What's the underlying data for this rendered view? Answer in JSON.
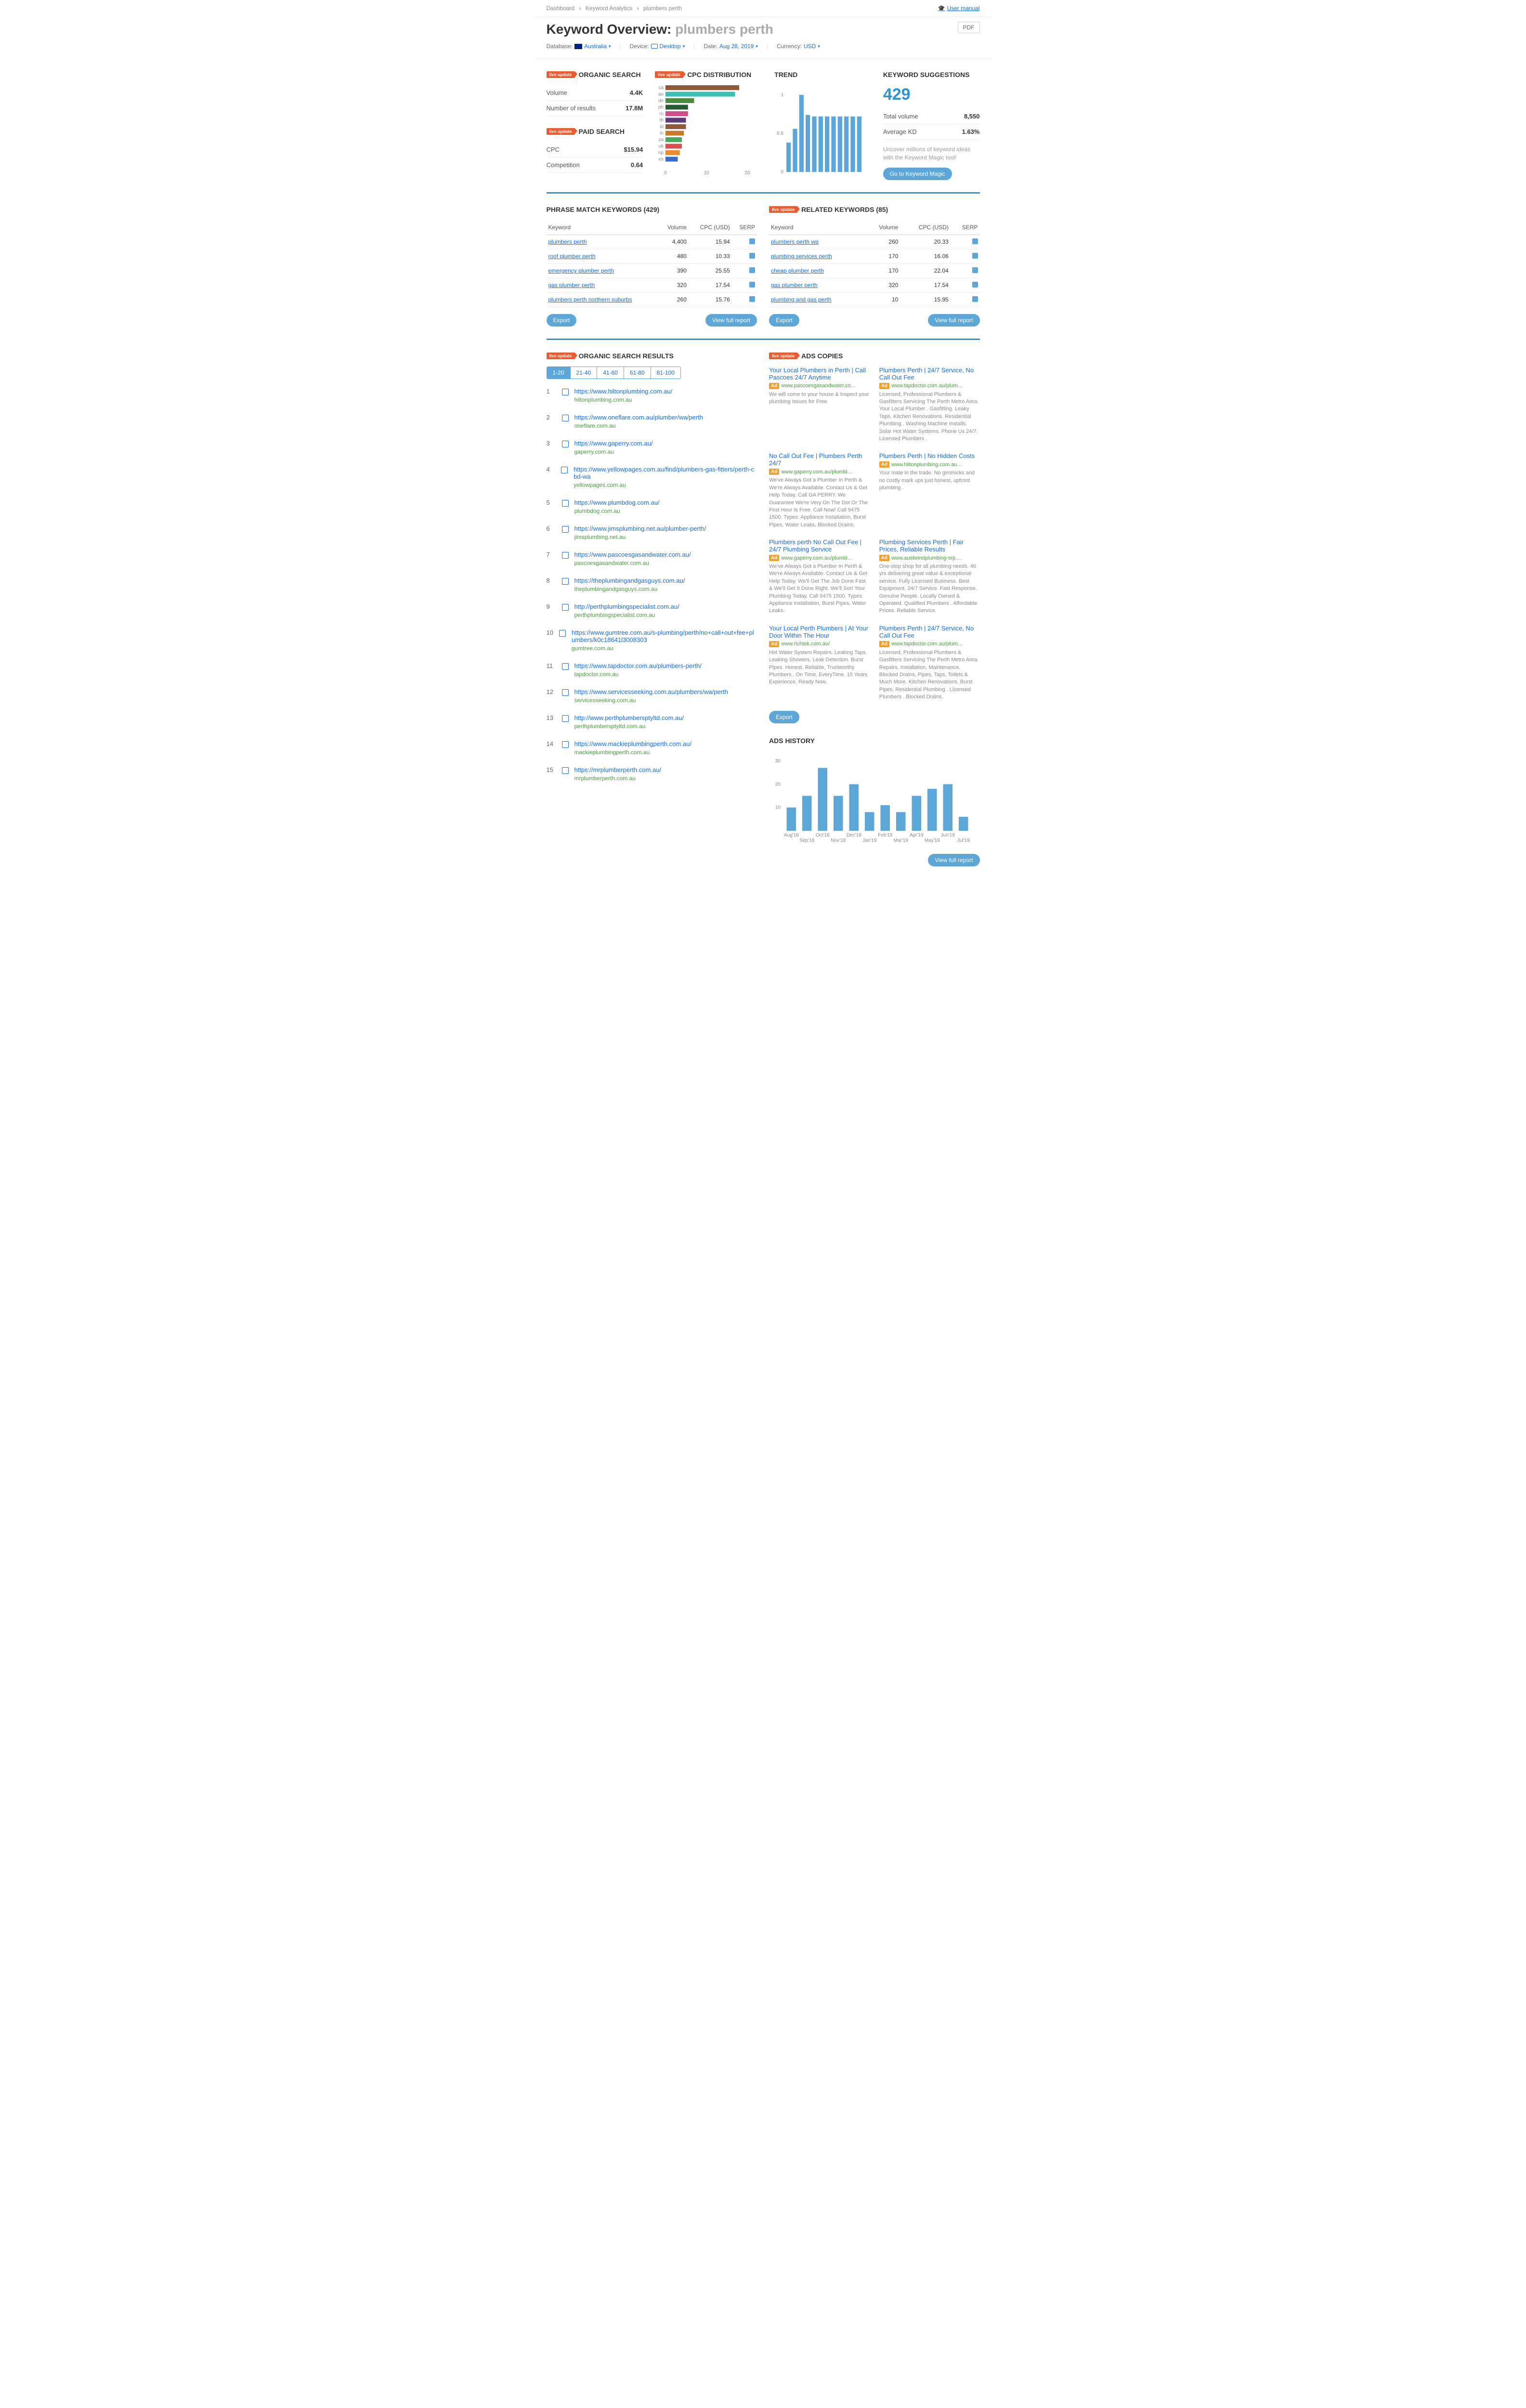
{
  "breadcrumb": {
    "items": [
      "Dashboard",
      "Keyword Analytics",
      "plumbers perth"
    ],
    "manual": "User manual"
  },
  "header": {
    "title_prefix": "Keyword Overview: ",
    "keyword": "plumbers perth",
    "pdf": "PDF"
  },
  "filters": {
    "database_label": "Database:",
    "database_val": "Australia",
    "device_label": "Device:",
    "device_val": "Desktop",
    "date_label": "Date:",
    "date_val": "Aug 28, 2019",
    "currency_label": "Currency:",
    "currency_val": "USD"
  },
  "organic_search": {
    "title": "ORGANIC SEARCH",
    "rows": [
      {
        "k": "Volume",
        "v": "4.4K"
      },
      {
        "k": "Number of results",
        "v": "17.8M"
      }
    ]
  },
  "paid_search": {
    "title": "PAID SEARCH",
    "rows": [
      {
        "k": "CPC",
        "v": "$15.94"
      },
      {
        "k": "Competition",
        "v": "0.64"
      }
    ]
  },
  "cpc_dist": {
    "title": "CPC DISTRIBUTION",
    "labels": [
      "ca",
      "au",
      "de",
      "ph",
      "ru",
      "th",
      "id",
      "in",
      "za",
      "uk",
      "np",
      "es"
    ],
    "values": [
      18,
      17,
      7,
      5.5,
      5.5,
      5,
      5,
      4.5,
      4,
      4,
      3.5,
      3
    ],
    "colors": [
      "#8f5a3a",
      "#3bbfb2",
      "#4a8c3f",
      "#2a5a33",
      "#d14a8a",
      "#5c3a7a",
      "#8f5a3a",
      "#c77a2a",
      "#4aa85c",
      "#d94f4f",
      "#f08a2a",
      "#3a6ac7"
    ],
    "xmax": 20,
    "xticks": [
      0,
      10,
      20
    ]
  },
  "trend": {
    "title": "TREND",
    "values": [
      0.38,
      0.56,
      1.0,
      0.74,
      0.72,
      0.72,
      0.72,
      0.72,
      0.72,
      0.72,
      0.72,
      0.72
    ],
    "color": "#5ca7d8",
    "yticks": [
      "0",
      "0.5",
      "1"
    ]
  },
  "suggestions": {
    "title": "KEYWORD SUGGESTIONS",
    "count": "429",
    "rows": [
      {
        "k": "Total volume",
        "v": "8,550"
      },
      {
        "k": "Average KD",
        "v": "1.63%"
      }
    ],
    "hint": "Uncover millions of keyword ideas with the Keyword Magic tool!",
    "btn": "Go to Keyword Magic"
  },
  "phrase_match": {
    "title": "PHRASE MATCH KEYWORDS (429)",
    "headers": [
      "Keyword",
      "Volume",
      "CPC (USD)",
      "SERP"
    ],
    "rows": [
      {
        "kw": "plumbers perth",
        "vol": "4,400",
        "cpc": "15.94"
      },
      {
        "kw": "roof plumber perth",
        "vol": "480",
        "cpc": "10.33"
      },
      {
        "kw": "emergency plumber perth",
        "vol": "390",
        "cpc": "25.55"
      },
      {
        "kw": "gas plumber perth",
        "vol": "320",
        "cpc": "17.54"
      },
      {
        "kw": "plumbers perth northern suburbs",
        "vol": "260",
        "cpc": "15.76"
      }
    ],
    "export": "Export",
    "report": "View full report"
  },
  "related": {
    "title": "RELATED KEYWORDS (85)",
    "headers": [
      "Keyword",
      "Volume",
      "CPC (USD)",
      "SERP"
    ],
    "rows": [
      {
        "kw": "plumbers perth wa",
        "vol": "260",
        "cpc": "20.33"
      },
      {
        "kw": "plumbing services perth",
        "vol": "170",
        "cpc": "16.06"
      },
      {
        "kw": "cheap plumber perth",
        "vol": "170",
        "cpc": "22.04"
      },
      {
        "kw": "gas plumber perth",
        "vol": "320",
        "cpc": "17.54"
      },
      {
        "kw": "plumbing and gas perth",
        "vol": "10",
        "cpc": "15.95"
      }
    ],
    "export": "Export",
    "report": "View full report"
  },
  "org_results": {
    "title": "ORGANIC SEARCH RESULTS",
    "pages": [
      "1-20",
      "21-40",
      "41-60",
      "61-80",
      "81-100"
    ],
    "list": [
      {
        "n": "1",
        "url": "https://www.hiltonplumbing.com.au/",
        "dom": "hiltonplumbing.com.au"
      },
      {
        "n": "2",
        "url": "https://www.oneflare.com.au/plumber/wa/perth",
        "dom": "oneflare.com.au"
      },
      {
        "n": "3",
        "url": "https://www.gaperry.com.au/",
        "dom": "gaperry.com.au"
      },
      {
        "n": "4",
        "url": "https://www.yellowpages.com.au/find/plumbers-gas-fitters/perth-cbd-wa",
        "dom": "yellowpages.com.au"
      },
      {
        "n": "5",
        "url": "https://www.plumbdog.com.au/",
        "dom": "plumbdog.com.au"
      },
      {
        "n": "6",
        "url": "https://www.jimsplumbing.net.au/plumber-perth/",
        "dom": "jimsplumbing.net.au"
      },
      {
        "n": "7",
        "url": "https://www.pascoesgasandwater.com.au/",
        "dom": "pascoesgasandwater.com.au"
      },
      {
        "n": "8",
        "url": "https://theplumbingandgasguys.com.au/",
        "dom": "theplumbingandgasguys.com.au"
      },
      {
        "n": "9",
        "url": "http://perthplumbingspecialist.com.au/",
        "dom": "perthplumbingspecialist.com.au"
      },
      {
        "n": "10",
        "url": "https://www.gumtree.com.au/s-plumbing/perth/no+call+out+fee+plumbers/k0c18641l3008303",
        "dom": "gumtree.com.au"
      },
      {
        "n": "11",
        "url": "https://www.tapdoctor.com.au/plumbers-perth/",
        "dom": "tapdoctor.com.au"
      },
      {
        "n": "12",
        "url": "https://www.servicesseeking.com.au/plumbers/wa/perth",
        "dom": "servicesseeking.com.au"
      },
      {
        "n": "13",
        "url": "http://www.perthplumbersptyltd.com.au/",
        "dom": "perthplumbersptyltd.com.au"
      },
      {
        "n": "14",
        "url": "https://www.mackieplumbingperth.com.au/",
        "dom": "mackieplumbingperth.com.au"
      },
      {
        "n": "15",
        "url": "https://mrplumberperth.com.au/",
        "dom": "mrplumberperth.com.au"
      }
    ]
  },
  "ads": {
    "title": "ADS COPIES",
    "ad_label": "Ad",
    "items": [
      {
        "title": "Your Local Plumbers in Perth | Call Pascoes 24/7 Anytime",
        "url": "www.pascoesgasandwater.co…",
        "desc": "We will come to your house & Inspect your plumbing issues for Free"
      },
      {
        "title": "Plumbers Perth | 24/7 Service, No Call Out Fee",
        "url": "www.tapdoctor.com.au/plum…",
        "desc": "Licensed, Professional Plumbers & Gasfitters Servicing The Perth Metro Area. Your Local Plumber . Gasfitting. Leaky Taps. Kitchen Renovations. Residential Plumbing . Washing Machine Installs. Solar Hot Water Systems. Phone Us 24/7. Licensed Plumbers ."
      },
      {
        "title": "No Call Out Fee | Plumbers Perth 24/7",
        "url": "www.gaperry.com.au/plumbi…",
        "desc": "We've Always Got a Plumber In Perth & We're Always Available. Contact Us & Get Help Today. Call GA PERRY. We Guarantee We're Very On The Dot Or The First Hour Is Free. Call Now! Call 9475 1500. Types: Appliance Installation, Burst Pipes, Water Leaks, Blocked Drains."
      },
      {
        "title": "Plumbers Perth | No Hidden Costs",
        "url": "www.hiltonplumbing.com.au…",
        "desc": "Your mate in the trade. No gimmicks and no costly mark ups just honest, upfront plumbing ."
      },
      {
        "title": "Plumbers perth No Call Out Fee | 24/7 Plumbing Service",
        "url": "www.gaperry.com.au/plumbi…",
        "desc": "We've Always Got a Plumber In Perth & We're Always Available. Contact Us & Get Help Today. We'll Get The Job Done Fast & We'll Get It Done Right. We'll Sort Your Plumbing Today. Call 9475 1500. Types: Appliance Installation, Burst Pipes, Water Leaks."
      },
      {
        "title": "Plumbing Services Perth | Fair Prices, Reliable Results",
        "url": "www.austwestplumbing-srp.…",
        "desc": "One-stop shop for all plumbing needs. 40 yrs delivering great value & exceptional service. Fully Licensed Business. Best Equipment. 24/7 Service. Fast Response. Genuine People. Locally Owned & Operated. Qualified Plumbers . Affordable Prices. Reliable Service."
      },
      {
        "title": "Your Local Perth Plumbers | At Your Door Within The Hour",
        "url": "www.richtek.com.au/",
        "desc": "Hot Water System Repairs. Leaking Taps. Leaking Showers. Leak Detection. Burst Pipes. Honest, Reliable, Trustworthy Plumbers . On Time, EveryTime. 15 Years Experience. Ready Now."
      },
      {
        "title": "Plumbers Perth | 24/7 Service, No Call Out Fee",
        "url": "www.tapdoctor.com.au/plum…",
        "desc": "Licensed, Professional Plumbers & Gasfitters Servicing The Perth Metro Area. Repairs, Installation, Maintenance, Blocked Drains, Pipes, Taps, Toilets & Much More. Kitchen Renovations. Burst Pipes. Residential Plumbing . Licensed Plumbers . Blocked Drains."
      }
    ],
    "export": "Export"
  },
  "ads_history": {
    "title": "ADS HISTORY",
    "labels": [
      "Aug'18",
      "Sep'18",
      "Oct'18",
      "Nov'18",
      "Dec'18",
      "Jan'19",
      "Feb'19",
      "Mar'19",
      "Apr'19",
      "May'19",
      "Jun'19",
      "Jul'19"
    ],
    "values": [
      10,
      15,
      27,
      15,
      20,
      8,
      11,
      8,
      15,
      18,
      20,
      6
    ],
    "ymax": 30,
    "yticks": [
      10,
      20,
      30
    ],
    "color": "#5ca7d8",
    "report": "View full report"
  },
  "live_label": "live update"
}
